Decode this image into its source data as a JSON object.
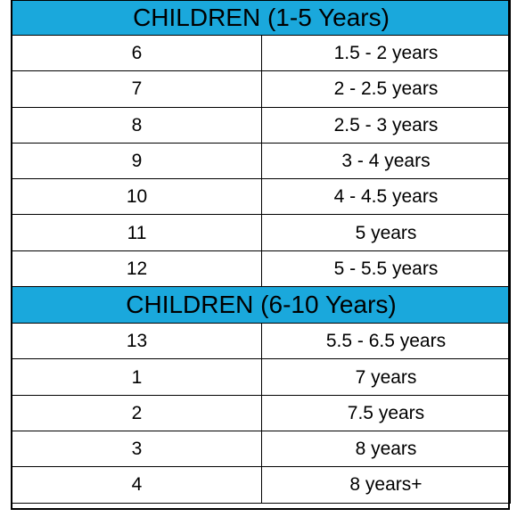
{
  "sections": [
    {
      "title": "CHILDREN (1-5 Years)",
      "rows": [
        {
          "size": "6",
          "age": "1.5 - 2 years"
        },
        {
          "size": "7",
          "age": "2 - 2.5 years"
        },
        {
          "size": "8",
          "age": "2.5 - 3 years"
        },
        {
          "size": "9",
          "age": "3 - 4 years"
        },
        {
          "size": "10",
          "age": "4 - 4.5 years"
        },
        {
          "size": "11",
          "age": "5 years"
        },
        {
          "size": "12",
          "age": "5 - 5.5 years"
        }
      ]
    },
    {
      "title": "CHILDREN (6-10 Years)",
      "rows": [
        {
          "size": "13",
          "age": "5.5 - 6.5 years"
        },
        {
          "size": "1",
          "age": "7 years"
        },
        {
          "size": "2",
          "age": "7.5 years"
        },
        {
          "size": "3",
          "age": "8 years"
        },
        {
          "size": "4",
          "age": "8 years+"
        }
      ]
    }
  ],
  "colors": {
    "header_background": "#1aa8dc",
    "border": "#000000",
    "text": "#000000"
  }
}
